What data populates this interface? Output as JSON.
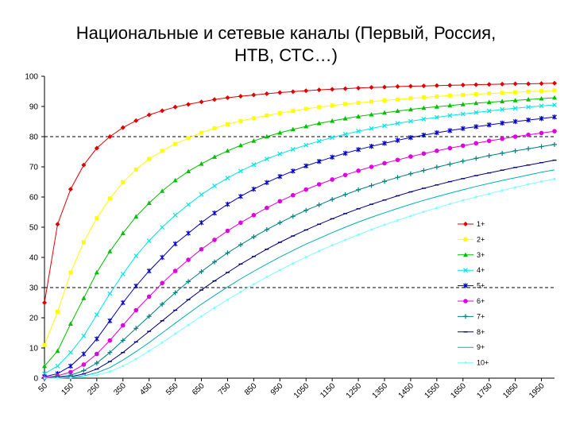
{
  "title_line1": "Национальные и сетевые каналы (Первый, Россия,",
  "title_line2": "НТВ, СТС…)",
  "chart_data": {
    "type": "line",
    "title": "Национальные и сетевые каналы (Первый, Россия, НТВ, СТС…)",
    "xlabel": "",
    "ylabel": "",
    "x_tick_labels": [
      "50",
      "150",
      "250",
      "350",
      "450",
      "550",
      "650",
      "750",
      "850",
      "950",
      "1050",
      "1150",
      "1250",
      "1350",
      "1450",
      "1550",
      "1650",
      "1750",
      "1850",
      "1950"
    ],
    "x_range": [
      50,
      2000
    ],
    "ylim": [
      0,
      100
    ],
    "y_ticks": [
      0,
      10,
      20,
      30,
      40,
      50,
      60,
      70,
      80,
      90,
      100
    ],
    "reference_lines": [
      80,
      30
    ],
    "grid": false,
    "legend_position": "right",
    "x": [
      50,
      100,
      150,
      200,
      250,
      300,
      350,
      400,
      450,
      500,
      550,
      600,
      650,
      700,
      750,
      800,
      850,
      900,
      950,
      1000,
      1050,
      1100,
      1150,
      1200,
      1250,
      1300,
      1350,
      1400,
      1450,
      1500,
      1550,
      1600,
      1650,
      1700,
      1750,
      1800,
      1850,
      1900,
      1950,
      2000
    ],
    "series": [
      {
        "name": "1+",
        "color": "#e00000",
        "marker": "diamond",
        "values": [
          25.0,
          51.0,
          62.6,
          70.6,
          76.2,
          80.0,
          83.0,
          85.3,
          87.2,
          88.6,
          89.8,
          90.7,
          91.5,
          92.3,
          92.9,
          93.4,
          93.8,
          94.2,
          94.6,
          94.9,
          95.2,
          95.5,
          95.7,
          95.9,
          96.1,
          96.3,
          96.4,
          96.6,
          96.7,
          96.8,
          96.9,
          97.0,
          97.1,
          97.2,
          97.3,
          97.4,
          97.5,
          97.5,
          97.6,
          97.7
        ]
      },
      {
        "name": "2+",
        "color": "#ffff00",
        "marker": "square",
        "values": [
          11.0,
          22.0,
          35.0,
          45.0,
          53.0,
          59.5,
          64.9,
          69.1,
          72.6,
          75.3,
          77.6,
          79.5,
          81.3,
          82.8,
          84.1,
          85.2,
          86.1,
          87.0,
          87.8,
          88.5,
          89.2,
          89.8,
          90.3,
          90.8,
          91.2,
          91.6,
          92.0,
          92.3,
          92.7,
          93.0,
          93.3,
          93.6,
          93.8,
          94.1,
          94.3,
          94.5,
          94.7,
          94.9,
          95.1,
          95.3
        ]
      },
      {
        "name": "3+",
        "color": "#00c000",
        "marker": "triangle",
        "values": [
          4.0,
          9.0,
          18.0,
          26.5,
          35.0,
          42.0,
          48.0,
          53.5,
          58.0,
          62.0,
          65.5,
          68.5,
          71.0,
          73.3,
          75.3,
          77.1,
          78.6,
          80.0,
          81.3,
          82.4,
          83.4,
          84.4,
          85.2,
          86.0,
          86.7,
          87.3,
          87.9,
          88.5,
          89.0,
          89.5,
          89.9,
          90.3,
          90.7,
          91.1,
          91.4,
          91.7,
          92.0,
          92.3,
          92.6,
          92.9
        ]
      },
      {
        "name": "4+",
        "color": "#00e5e5",
        "marker": "x",
        "values": [
          1.5,
          4.0,
          8.5,
          14.0,
          21.0,
          28.0,
          34.5,
          40.5,
          45.5,
          50.0,
          54.0,
          57.5,
          60.8,
          63.7,
          66.3,
          68.6,
          70.7,
          72.6,
          74.3,
          75.8,
          77.2,
          78.5,
          79.7,
          80.8,
          81.8,
          82.7,
          83.6,
          84.4,
          85.1,
          85.8,
          86.4,
          87.0,
          87.5,
          88.0,
          88.5,
          89.0,
          89.4,
          89.8,
          90.2,
          90.5
        ]
      },
      {
        "name": "5+",
        "color": "#0000c8",
        "marker": "star",
        "values": [
          0.5,
          1.5,
          4.0,
          8.0,
          13.0,
          19.0,
          25.0,
          30.5,
          35.5,
          40.0,
          44.5,
          48.0,
          51.5,
          54.7,
          57.6,
          60.2,
          62.6,
          64.8,
          66.8,
          68.6,
          70.3,
          71.8,
          73.2,
          74.5,
          75.7,
          76.8,
          77.8,
          78.8,
          79.7,
          80.5,
          81.3,
          82.0,
          82.7,
          83.3,
          83.9,
          84.5,
          85.0,
          85.5,
          86.0,
          86.5
        ]
      },
      {
        "name": "6+",
        "color": "#e000e0",
        "marker": "circle",
        "values": [
          0.2,
          0.8,
          2.0,
          4.5,
          8.0,
          12.5,
          17.5,
          22.5,
          27.0,
          31.5,
          35.5,
          39.2,
          42.7,
          45.8,
          48.8,
          51.5,
          54.0,
          56.4,
          58.6,
          60.6,
          62.5,
          64.2,
          65.8,
          67.3,
          68.7,
          70.0,
          71.2,
          72.3,
          73.4,
          74.4,
          75.3,
          76.2,
          77.0,
          77.8,
          78.6,
          79.3,
          80.0,
          80.6,
          81.2,
          81.8
        ]
      },
      {
        "name": "7+",
        "color": "#008080",
        "marker": "plus",
        "values": [
          0.1,
          0.4,
          1.0,
          2.5,
          5.0,
          8.5,
          12.5,
          16.5,
          20.5,
          24.5,
          28.3,
          32.0,
          35.3,
          38.5,
          41.5,
          44.2,
          46.8,
          49.2,
          51.5,
          53.6,
          55.6,
          57.4,
          59.2,
          60.8,
          62.4,
          63.8,
          65.2,
          66.5,
          67.7,
          68.8,
          69.9,
          70.9,
          71.9,
          72.8,
          73.7,
          74.5,
          75.3,
          76.0,
          76.7,
          77.4
        ]
      },
      {
        "name": "8+",
        "color": "#000080",
        "marker": "dash",
        "values": [
          0.0,
          0.2,
          0.5,
          1.4,
          3.0,
          5.5,
          8.5,
          12.0,
          15.5,
          19.0,
          22.5,
          26.0,
          29.2,
          32.2,
          35.0,
          37.8,
          40.3,
          42.7,
          45.0,
          47.1,
          49.1,
          51.0,
          52.8,
          54.5,
          56.1,
          57.6,
          59.0,
          60.4,
          61.7,
          62.9,
          64.0,
          65.1,
          66.1,
          67.1,
          68.0,
          68.9,
          69.8,
          70.6,
          71.4,
          72.2
        ]
      },
      {
        "name": "9+",
        "color": "#00b0b0",
        "marker": "none",
        "values": [
          0.0,
          0.1,
          0.3,
          0.8,
          1.8,
          3.5,
          6.0,
          8.8,
          11.8,
          15.0,
          18.2,
          21.4,
          24.5,
          27.4,
          30.2,
          32.9,
          35.4,
          37.8,
          40.1,
          42.3,
          44.4,
          46.3,
          48.2,
          50.0,
          51.7,
          53.3,
          54.8,
          56.2,
          57.6,
          58.9,
          60.1,
          61.3,
          62.4,
          63.5,
          64.5,
          65.5,
          66.4,
          67.3,
          68.2,
          69.0
        ]
      },
      {
        "name": "10+",
        "color": "#80ffff",
        "marker": "dot",
        "values": [
          0.0,
          0.0,
          0.2,
          0.5,
          1.0,
          2.2,
          4.0,
          6.3,
          9.0,
          11.8,
          14.7,
          17.6,
          20.5,
          23.3,
          26.0,
          28.6,
          31.1,
          33.5,
          35.8,
          38.0,
          40.1,
          42.1,
          44.0,
          45.8,
          47.5,
          49.2,
          50.8,
          52.3,
          53.7,
          55.1,
          56.4,
          57.7,
          58.9,
          60.0,
          61.1,
          62.2,
          63.2,
          64.2,
          65.1,
          66.0
        ]
      }
    ]
  }
}
